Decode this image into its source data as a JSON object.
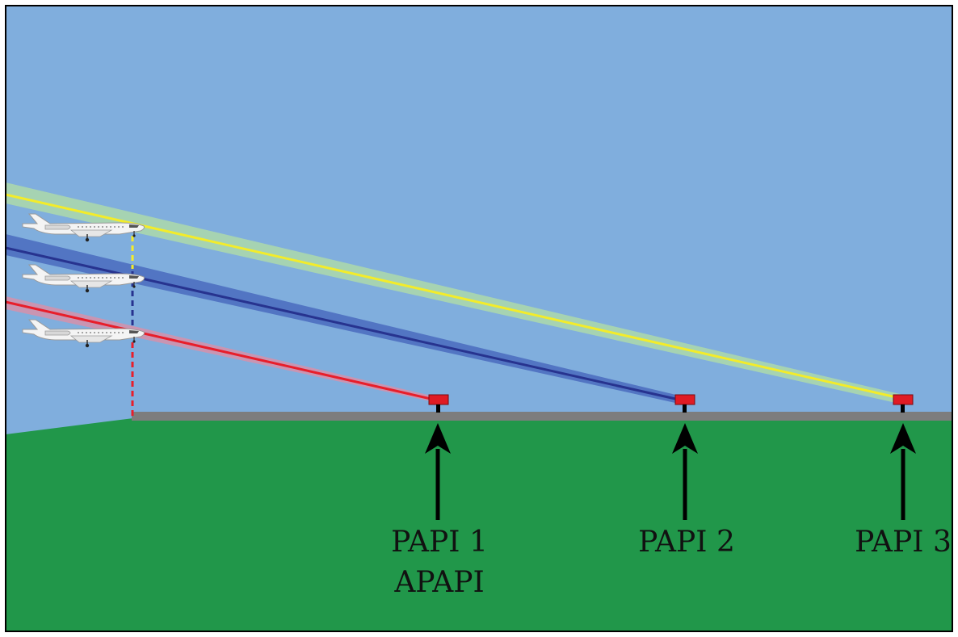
{
  "colors": {
    "sky": "#80aedd",
    "ground": "#21974a",
    "runway": "#7d7d7d",
    "frame": "#000000",
    "light_box": "#e01b24",
    "papi1_beam": "#e81e2a",
    "papi1_beam_glow": "#e88aa0",
    "papi2_beam": "#27338f",
    "papi2_beam_glow": "#3f5cb8",
    "papi3_beam": "#f3ec2a",
    "papi3_beam_glow": "#b7e3a0",
    "arrow": "#000000",
    "aircraft_body": "#f4f4f4"
  },
  "lights": [
    {
      "id": "papi1",
      "label_lines": [
        "PAPI 1",
        "APAPI"
      ],
      "beam": "red"
    },
    {
      "id": "papi2",
      "label_lines": [
        "PAPI 2"
      ],
      "beam": "blue"
    },
    {
      "id": "papi3",
      "label_lines": [
        "PAPI 3"
      ],
      "beam": "yellow"
    }
  ],
  "aircraft": [
    {
      "id": "aircraft-top",
      "on_beam": "papi3"
    },
    {
      "id": "aircraft-middle",
      "on_beam": "papi2"
    },
    {
      "id": "aircraft-bottom",
      "on_beam": "papi1"
    }
  ],
  "icons": [
    "aircraft-icon",
    "papi-light-icon",
    "arrow-up-icon"
  ]
}
